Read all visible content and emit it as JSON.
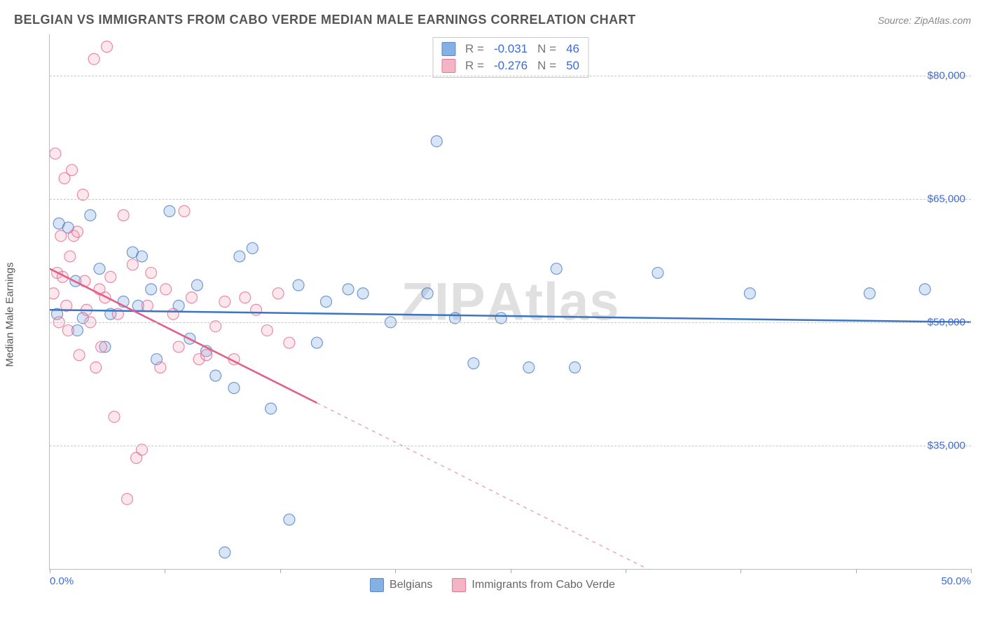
{
  "title": "BELGIAN VS IMMIGRANTS FROM CABO VERDE MEDIAN MALE EARNINGS CORRELATION CHART",
  "source_label": "Source: ",
  "source_value": "ZipAtlas.com",
  "ylabel": "Median Male Earnings",
  "watermark_bold": "ZIP",
  "watermark_rest": "Atlas",
  "chart": {
    "type": "scatter",
    "xlim": [
      0,
      50
    ],
    "ylim": [
      20000,
      85000
    ],
    "x_min_label": "0.0%",
    "x_max_label": "50.0%",
    "y_ticks": [
      35000,
      50000,
      65000,
      80000
    ],
    "y_tick_labels": [
      "$35,000",
      "$50,000",
      "$65,000",
      "$80,000"
    ],
    "x_ticks": [
      0,
      6.25,
      12.5,
      18.75,
      25,
      31.25,
      37.5,
      43.75,
      50
    ],
    "grid_color": "#c8c8c8",
    "background_color": "#ffffff",
    "marker_radius": 8,
    "marker_fill_opacity": 0.28,
    "marker_stroke_opacity": 0.7,
    "line_width": 2.5,
    "series": [
      {
        "name": "Belgians",
        "color": "#6fa3e0",
        "stroke": "#3b74c4",
        "r_value": "-0.031",
        "n_value": "46",
        "regression": {
          "x1": 0,
          "y1": 51500,
          "x2": 50,
          "y2": 50000,
          "solid_until_x": 50
        },
        "points": [
          [
            0.4,
            51000
          ],
          [
            0.5,
            62000
          ],
          [
            1.0,
            61500
          ],
          [
            1.4,
            55000
          ],
          [
            1.5,
            49000
          ],
          [
            1.8,
            50500
          ],
          [
            2.2,
            63000
          ],
          [
            2.7,
            56500
          ],
          [
            3.0,
            47000
          ],
          [
            3.3,
            51000
          ],
          [
            4.0,
            52500
          ],
          [
            4.5,
            58500
          ],
          [
            5.0,
            58000
          ],
          [
            5.5,
            54000
          ],
          [
            5.8,
            45500
          ],
          [
            6.5,
            63500
          ],
          [
            7.0,
            52000
          ],
          [
            7.6,
            48000
          ],
          [
            8.0,
            54500
          ],
          [
            8.5,
            46500
          ],
          [
            9.0,
            43500
          ],
          [
            9.5,
            22000
          ],
          [
            10.0,
            42000
          ],
          [
            10.3,
            58000
          ],
          [
            11.0,
            59000
          ],
          [
            12.0,
            39500
          ],
          [
            13.0,
            26000
          ],
          [
            13.5,
            54500
          ],
          [
            14.5,
            47500
          ],
          [
            15.0,
            52500
          ],
          [
            16.2,
            54000
          ],
          [
            17.0,
            53500
          ],
          [
            18.5,
            50000
          ],
          [
            20.5,
            53500
          ],
          [
            21.0,
            72000
          ],
          [
            22.0,
            50500
          ],
          [
            23.0,
            45000
          ],
          [
            24.5,
            50500
          ],
          [
            26.0,
            44500
          ],
          [
            27.5,
            56500
          ],
          [
            28.5,
            44500
          ],
          [
            33.0,
            56000
          ],
          [
            38.0,
            53500
          ],
          [
            44.5,
            53500
          ],
          [
            47.5,
            54000
          ],
          [
            4.8,
            52000
          ]
        ]
      },
      {
        "name": "Immigrants from Cabo Verde",
        "color": "#f2a9bb",
        "stroke": "#e55d87",
        "r_value": "-0.276",
        "n_value": "50",
        "regression": {
          "x1": 0,
          "y1": 56500,
          "x2": 36,
          "y2": 16000,
          "solid_until_x": 14.5
        },
        "points": [
          [
            0.2,
            53500
          ],
          [
            0.3,
            70500
          ],
          [
            0.4,
            56000
          ],
          [
            0.5,
            50000
          ],
          [
            0.6,
            60500
          ],
          [
            0.7,
            55500
          ],
          [
            0.8,
            67500
          ],
          [
            0.9,
            52000
          ],
          [
            1.0,
            49000
          ],
          [
            1.1,
            58000
          ],
          [
            1.2,
            68500
          ],
          [
            1.3,
            60500
          ],
          [
            1.5,
            61000
          ],
          [
            1.6,
            46000
          ],
          [
            1.8,
            65500
          ],
          [
            1.9,
            55000
          ],
          [
            2.0,
            51500
          ],
          [
            2.2,
            50000
          ],
          [
            2.4,
            82000
          ],
          [
            2.5,
            44500
          ],
          [
            2.7,
            54000
          ],
          [
            2.8,
            47000
          ],
          [
            3.0,
            53000
          ],
          [
            3.1,
            83500
          ],
          [
            3.3,
            55500
          ],
          [
            3.5,
            38500
          ],
          [
            3.7,
            51000
          ],
          [
            4.0,
            63000
          ],
          [
            4.2,
            28500
          ],
          [
            4.5,
            57000
          ],
          [
            4.7,
            33500
          ],
          [
            5.0,
            34500
          ],
          [
            5.3,
            52000
          ],
          [
            5.5,
            56000
          ],
          [
            6.0,
            44500
          ],
          [
            6.3,
            54000
          ],
          [
            6.7,
            51000
          ],
          [
            7.0,
            47000
          ],
          [
            7.3,
            63500
          ],
          [
            7.7,
            53000
          ],
          [
            8.1,
            45500
          ],
          [
            8.5,
            46000
          ],
          [
            9.0,
            49500
          ],
          [
            9.5,
            52500
          ],
          [
            10.0,
            45500
          ],
          [
            10.6,
            53000
          ],
          [
            11.2,
            51500
          ],
          [
            11.8,
            49000
          ],
          [
            12.4,
            53500
          ],
          [
            13.0,
            47500
          ]
        ]
      }
    ]
  },
  "legend": {
    "r_label": "R =",
    "n_label": "N ="
  }
}
